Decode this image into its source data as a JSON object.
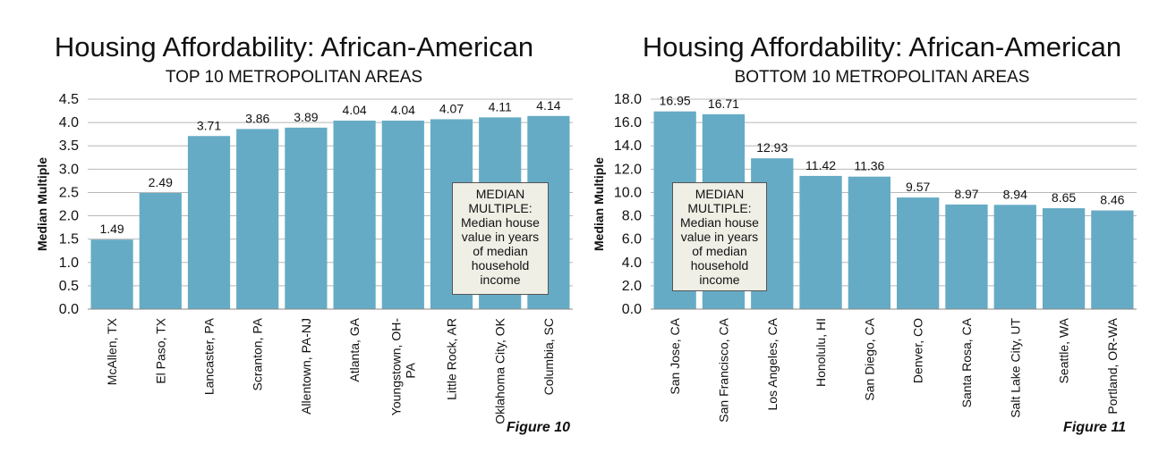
{
  "chart_data": [
    {
      "type": "bar",
      "title": "Housing Affordability: African-American",
      "subtitle": "TOP 10 METROPOLITAN AREAS",
      "ylabel": "Median Multiple",
      "xlabel": "",
      "categories": [
        "McAllen, TX",
        "El Paso, TX",
        "Lancaster, PA",
        "Scranton, PA",
        "Allentown, PA-NJ",
        "Atlanta, GA",
        "Youngstown, OH-PA",
        "Little Rock, AR",
        "Oklahoma City, OK",
        "Columbia, SC"
      ],
      "values": [
        1.49,
        2.49,
        3.71,
        3.86,
        3.89,
        4.04,
        4.04,
        4.07,
        4.11,
        4.14
      ],
      "value_labels": [
        "1.49",
        "2.49",
        "3.71",
        "3.86",
        "3.89",
        "4.04",
        "4.04",
        "4.07",
        "4.11",
        "4.14"
      ],
      "ylim": [
        0,
        4.5
      ],
      "yticks": [
        "0.0",
        "0.5",
        "1.0",
        "1.5",
        "2.0",
        "2.5",
        "3.0",
        "3.5",
        "4.0",
        "4.5"
      ],
      "grid": true,
      "bar_color": "#66abc5",
      "note_lines": [
        "MEDIAN",
        "MULTIPLE:",
        "Median house",
        "value in years",
        "of median",
        "household",
        "income"
      ],
      "figure_label": "Figure 10"
    },
    {
      "type": "bar",
      "title": "Housing Affordability: African-American",
      "subtitle": "BOTTOM 10 METROPOLITAN AREAS",
      "ylabel": "Median Multiple",
      "xlabel": "",
      "categories": [
        "San Jose, CA",
        "San Francisco, CA",
        "Los Angeles, CA",
        "Honolulu, HI",
        "San Diego, CA",
        "Denver, CO",
        "Santa Rosa, CA",
        "Salt Lake City, UT",
        "Seattle, WA",
        "Portland, OR-WA"
      ],
      "values": [
        16.95,
        16.71,
        12.93,
        11.42,
        11.36,
        9.57,
        8.97,
        8.94,
        8.65,
        8.46
      ],
      "value_labels": [
        "16.95",
        "16.71",
        "12.93",
        "11.42",
        "11.36",
        "9.57",
        "8.97",
        "8.94",
        "8.65",
        "8.46"
      ],
      "ylim": [
        0,
        18
      ],
      "yticks": [
        "0.0",
        "2.0",
        "4.0",
        "6.0",
        "8.0",
        "10.0",
        "12.0",
        "14.0",
        "16.0",
        "18.0"
      ],
      "grid": true,
      "bar_color": "#66abc5",
      "note_lines": [
        "MEDIAN",
        "MULTIPLE:",
        "Median house",
        "value in years",
        "of median",
        "household",
        "income"
      ],
      "figure_label": "Figure 11"
    }
  ]
}
